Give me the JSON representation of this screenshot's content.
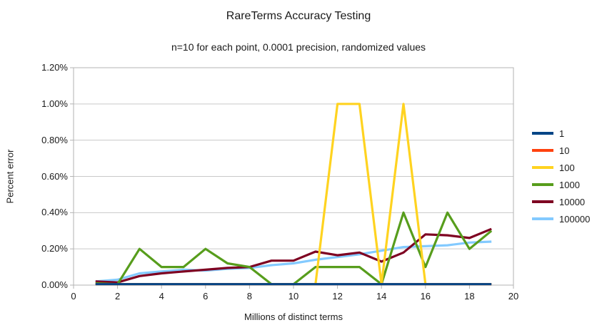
{
  "chart_data": {
    "type": "line",
    "title": "RareTerms Accuracy Testing",
    "subtitle": "n=10 for each point, 0.0001 precision, randomized values",
    "xlabel": "Millions of distinct terms",
    "ylabel": "Percent error",
    "xlim": [
      0,
      20
    ],
    "ylim": [
      0,
      1.2
    ],
    "y_unit": "percent",
    "grid": "horizontal",
    "legend_position": "right",
    "x": [
      1,
      2,
      3,
      4,
      5,
      6,
      7,
      8,
      9,
      10,
      11,
      12,
      13,
      14,
      15,
      16,
      17,
      18,
      19
    ],
    "xticks": [
      {
        "v": 0,
        "label": "0"
      },
      {
        "v": 2,
        "label": "2"
      },
      {
        "v": 4,
        "label": "4"
      },
      {
        "v": 6,
        "label": "6"
      },
      {
        "v": 8,
        "label": "8"
      },
      {
        "v": 10,
        "label": "10"
      },
      {
        "v": 12,
        "label": "12"
      },
      {
        "v": 14,
        "label": "14"
      },
      {
        "v": 16,
        "label": "16"
      },
      {
        "v": 18,
        "label": "18"
      },
      {
        "v": 20,
        "label": "20"
      }
    ],
    "yticks": [
      {
        "v": 0.0,
        "label": "0.00%"
      },
      {
        "v": 0.2,
        "label": "0.20%"
      },
      {
        "v": 0.4,
        "label": "0.40%"
      },
      {
        "v": 0.6,
        "label": "0.60%"
      },
      {
        "v": 0.8,
        "label": "0.80%"
      },
      {
        "v": 1.0,
        "label": "1.00%"
      },
      {
        "v": 1.2,
        "label": "1.20%"
      }
    ],
    "series": [
      {
        "name": "1",
        "color": "#004586",
        "values": [
          0.005,
          0.005,
          0.005,
          0.005,
          0.005,
          0.005,
          0.005,
          0.005,
          0.005,
          0.005,
          0.005,
          0.005,
          0.005,
          0.005,
          0.005,
          0.005,
          0.005,
          0.005,
          0.005
        ]
      },
      {
        "name": "10",
        "color": "#ff420e",
        "values": [
          0.005,
          0.005,
          0.005,
          0.005,
          0.005,
          0.005,
          0.005,
          0.005,
          0.005,
          0.005,
          0.005,
          0.005,
          0.005,
          0.005,
          0.005,
          0.005,
          0.005,
          0.005,
          0.005
        ]
      },
      {
        "name": "100",
        "color": "#ffd320",
        "values": [
          0.005,
          0.005,
          0.005,
          0.005,
          0.005,
          0.005,
          0.005,
          0.005,
          0.005,
          0.005,
          0.005,
          1.0,
          1.0,
          0.005,
          1.0,
          0.005,
          0.005,
          0.005,
          0.005
        ]
      },
      {
        "name": "1000",
        "color": "#579d1c",
        "values": [
          0.01,
          0.005,
          0.2,
          0.1,
          0.1,
          0.2,
          0.12,
          0.1,
          0.005,
          0.005,
          0.1,
          0.1,
          0.1,
          0.005,
          0.4,
          0.1,
          0.4,
          0.2,
          0.3
        ]
      },
      {
        "name": "10000",
        "color": "#7e0021",
        "values": [
          0.02,
          0.015,
          0.05,
          0.065,
          0.075,
          0.085,
          0.095,
          0.1,
          0.135,
          0.135,
          0.185,
          0.165,
          0.18,
          0.13,
          0.18,
          0.28,
          0.275,
          0.26,
          0.31
        ]
      },
      {
        "name": "100000",
        "color": "#83caff",
        "values": [
          0.02,
          0.03,
          0.065,
          0.075,
          0.085,
          0.08,
          0.09,
          0.095,
          0.11,
          0.12,
          0.14,
          0.155,
          0.17,
          0.19,
          0.21,
          0.215,
          0.22,
          0.235,
          0.24
        ]
      }
    ],
    "colors": {
      "frame": "#b3b3b3",
      "gridline": "#c9c9c9",
      "tick": "#b3b3b3",
      "text": "#1a1a1a",
      "background": "#ffffff"
    }
  }
}
